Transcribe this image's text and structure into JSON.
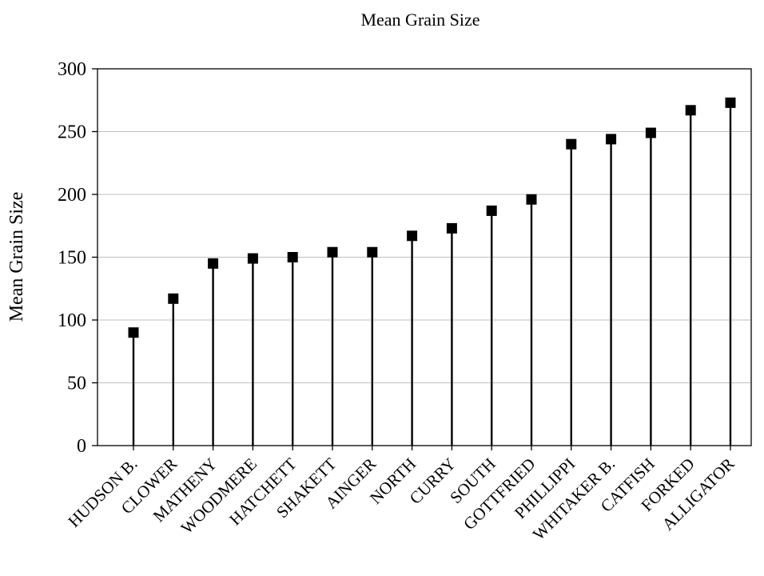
{
  "chart_data": {
    "type": "scatter",
    "title": "Mean Grain Size",
    "xlabel": "",
    "ylabel": "Mean Grain Size",
    "ylim": [
      0,
      300
    ],
    "yticks": [
      0,
      50,
      100,
      150,
      200,
      250,
      300
    ],
    "grid": true,
    "legend": "none",
    "marker": "square",
    "stems": true,
    "categories": [
      "HUDSON B.",
      "CLOWER",
      "MATHENY",
      "WOODMERE",
      "HATCHETT",
      "SHAKETT",
      "AINGER",
      "NORTH",
      "CURRY",
      "SOUTH",
      "GOTTFRIED",
      "PHILLIPPI",
      "WHITAKER B.",
      "CATFISH",
      "FORKED",
      "ALLIGATOR"
    ],
    "series": [
      {
        "values": [
          90,
          117,
          145,
          149,
          150,
          154,
          154,
          167,
          173,
          187,
          196,
          240,
          244,
          249,
          267,
          273
        ]
      }
    ]
  }
}
